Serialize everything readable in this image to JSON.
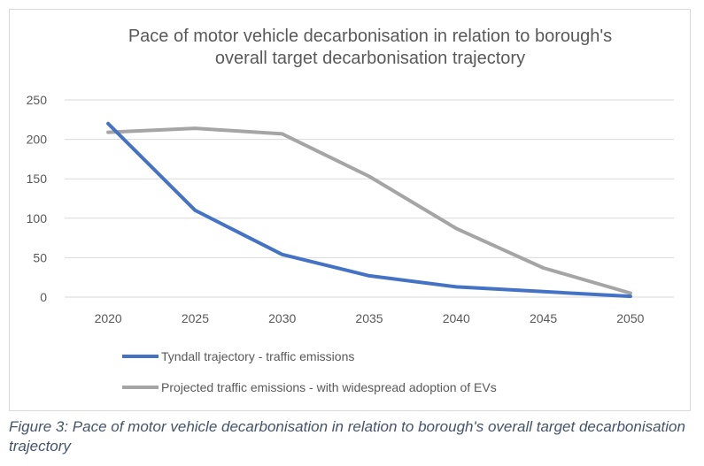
{
  "chart_data": {
    "type": "line",
    "title_lines": [
      "Pace of motor vehicle decarbonisation in relation to borough's",
      "overall target decarbonisation trajectory"
    ],
    "categories": [
      "2020",
      "2025",
      "2030",
      "2035",
      "2040",
      "2045",
      "2050"
    ],
    "ylim": [
      0,
      250
    ],
    "yticks": [
      0,
      50,
      100,
      150,
      200,
      250
    ],
    "grid": true,
    "legend_position": "bottom-left",
    "series": [
      {
        "name": "Tyndall trajectory - traffic emissions",
        "color": "#4472c4",
        "values": [
          220,
          110,
          54,
          27,
          13,
          7,
          1
        ]
      },
      {
        "name": "Projected traffic emissions - with widespread adoption of EVs",
        "color": "#a5a5a5",
        "values": [
          209,
          214,
          207,
          153,
          87,
          37,
          5
        ]
      }
    ]
  },
  "caption": "Figure 3: Pace of motor vehicle decarbonisation in relation to borough's overall target decarbonisation trajectory"
}
